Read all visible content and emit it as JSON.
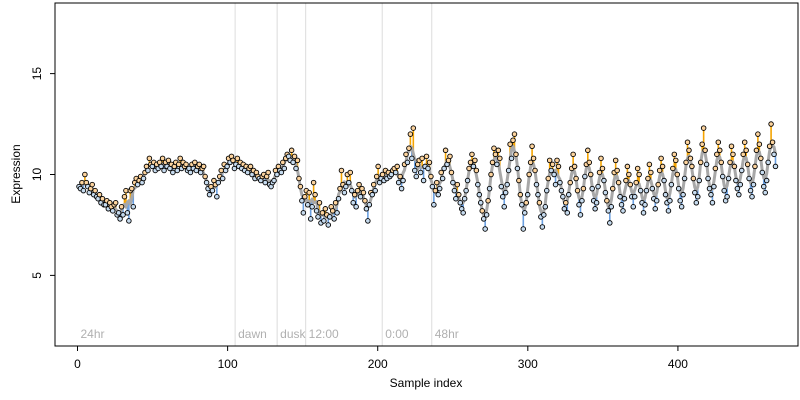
{
  "chart_data": {
    "type": "scatter",
    "title": "",
    "xlabel": "Sample index",
    "ylabel": "Expression",
    "xlim": [
      -15,
      480
    ],
    "ylim": [
      1.5,
      18.5
    ],
    "x_ticks": [
      0,
      100,
      200,
      300,
      400
    ],
    "y_ticks": [
      5,
      10,
      15
    ],
    "grid": false,
    "legend": "none",
    "colors": {
      "points_stroke": "#000000",
      "points_fill_high": "#fdd49e",
      "points_fill_low": "#c6dbef",
      "residual_up": "#f4a300",
      "residual_down": "#6a9fe0",
      "fitted": "#a8a8a8",
      "markers": "#dcdcdc",
      "annotation_text": "#b0b0b0"
    },
    "vertical_markers": [
      {
        "x": 0,
        "label": "24hr"
      },
      {
        "x": 105,
        "label": "dawn"
      },
      {
        "x": 133,
        "label": "dusk"
      },
      {
        "x": 152,
        "label": "12:00"
      },
      {
        "x": 203,
        "label": "0:00"
      },
      {
        "x": 236,
        "label": "48hr"
      }
    ],
    "series": [
      {
        "x_range": [
          1,
          465
        ],
        "values": [
          9.4,
          9.3,
          9.6,
          9.2,
          10.0,
          9.6,
          9.4,
          9.1,
          9.3,
          9.5,
          9.0,
          9.2,
          8.9,
          8.8,
          9.0,
          8.6,
          8.8,
          8.5,
          8.5,
          8.7,
          8.3,
          8.6,
          8.4,
          8.2,
          8.5,
          8.6,
          8.0,
          8.1,
          7.8,
          8.4,
          8.0,
          8.9,
          9.2,
          8.1,
          7.7,
          9.2,
          9.3,
          8.4,
          9.6,
          9.8,
          9.5,
          9.7,
          9.9,
          9.6,
          9.8,
          10.1,
          10.4,
          10.2,
          10.8,
          10.5,
          10.4,
          10.6,
          10.2,
          10.5,
          10.3,
          10.6,
          10.4,
          10.8,
          10.2,
          10.6,
          10.4,
          10.7,
          10.3,
          10.5,
          10.1,
          10.4,
          10.6,
          10.2,
          10.5,
          10.8,
          10.3,
          10.6,
          10.4,
          10.5,
          10.2,
          10.3,
          10.1,
          10.5,
          10.3,
          10.6,
          10.2,
          10.4,
          10.5,
          10.1,
          10.3,
          10.4,
          9.9,
          9.6,
          9.3,
          9.0,
          9.4,
          9.2,
          9.7,
          9.5,
          8.9,
          9.6,
          9.9,
          10.2,
          9.8,
          10.5,
          10.2,
          10.4,
          10.8,
          10.6,
          10.9,
          10.7,
          10.3,
          10.5,
          10.8,
          10.4,
          10.6,
          10.3,
          10.5,
          10.2,
          10.4,
          10.1,
          10.3,
          10.4,
          10.0,
          10.2,
          9.8,
          10.1,
          9.9,
          9.8,
          9.7,
          9.9,
          10.0,
          9.6,
          9.9,
          10.1,
          9.5,
          9.4,
          9.6,
          9.7,
          10.2,
          10.0,
          10.4,
          10.2,
          10.1,
          10.6,
          10.3,
          10.8,
          11.0,
          10.9,
          10.7,
          11.2,
          10.6,
          10.9,
          10.3,
          10.7,
          9.8,
          9.4,
          8.7,
          8.1,
          8.9,
          9.2,
          8.5,
          9.1,
          7.8,
          8.4,
          9.6,
          9.0,
          8.2,
          7.9,
          8.6,
          7.6,
          8.1,
          7.7,
          8.3,
          8.0,
          7.5,
          7.9,
          8.4,
          8.2,
          7.8,
          8.6,
          8.1,
          8.8,
          9.3,
          10.2,
          9.5,
          9.1,
          9.4,
          10.0,
          9.6,
          10.1,
          9.2,
          8.6,
          9.0,
          8.4,
          9.2,
          9.5,
          8.9,
          9.3,
          9.1,
          8.7,
          8.3,
          7.7,
          8.5,
          9.1,
          9.0,
          9.5,
          9.2,
          9.9,
          10.4,
          9.6,
          9.8,
          10.0,
          9.7,
          10.2,
          9.8,
          10.1,
          9.9,
          10.0,
          10.2,
          10.3,
          10.1,
          10.4,
          9.6,
          9.9,
          9.3,
          9.7,
          10.5,
          11.0,
          10.6,
          11.3,
          12.0,
          10.8,
          12.3,
          10.2,
          9.9,
          10.5,
          10.7,
          10.1,
          10.8,
          9.7,
          10.4,
          10.9,
          10.3,
          10.6,
          9.9,
          9.4,
          8.5,
          9.2,
          9.6,
          9.0,
          9.3,
          10.1,
          9.8,
          10.3,
          11.2,
          10.5,
          10.7,
          10.9,
          10.1,
          9.6,
          9.2,
          8.8,
          9.5,
          9.0,
          8.6,
          8.3,
          8.1,
          8.8,
          9.2,
          9.7,
          10.3,
          10.6,
          11.0,
          10.4,
          10.7,
          10.2,
          9.5,
          9.0,
          8.6,
          8.2,
          7.8,
          7.3,
          8.0,
          8.7,
          9.3,
          10.0,
          10.6,
          11.3,
          11.0,
          10.5,
          11.2,
          10.8,
          9.4,
          8.9,
          8.4,
          9.1,
          9.5,
          10.2,
          11.5,
          10.8,
          11.7,
          12.0,
          11.0,
          10.3,
          9.7,
          9.0,
          8.5,
          7.3,
          8.1,
          8.6,
          9.0,
          10.0,
          10.6,
          11.4,
          10.8,
          10.2,
          9.5,
          9.0,
          8.6,
          7.9,
          7.4,
          8.0,
          8.4,
          9.2,
          9.8,
          10.7,
          10.2,
          10.5,
          10.0,
          9.5,
          10.7,
          10.4,
          9.6,
          9.2,
          8.9,
          8.3,
          8.6,
          8.1,
          9.0,
          9.6,
          10.3,
          11.0,
          10.4,
          9.8,
          9.2,
          8.5,
          8.0,
          8.7,
          9.3,
          9.9,
          10.5,
          11.2,
          10.6,
          10.0,
          9.3,
          8.7,
          8.3,
          8.6,
          9.4,
          10.1,
          10.8,
          10.3,
          9.7,
          9.1,
          8.7,
          8.2,
          7.6,
          8.4,
          9.3,
          10.1,
          10.7,
          10.2,
          9.6,
          8.9,
          8.5,
          8.2,
          8.8,
          9.7,
          10.4,
          10.0,
          9.5,
          8.9,
          8.4,
          8.9,
          9.6,
          10.3,
          10.0,
          9.2,
          8.6,
          8.1,
          8.5,
          9.2,
          9.8,
          10.5,
          10.1,
          9.3,
          8.8,
          8.3,
          8.7,
          9.5,
          10.2,
          10.8,
          10.4,
          9.7,
          9.0,
          8.6,
          8.2,
          8.7,
          9.5,
          10.3,
          11.0,
          10.7,
          10.0,
          9.3,
          8.7,
          8.4,
          9.0,
          9.8,
          10.6,
          11.6,
          11.2,
          10.8,
          10.4,
          9.8,
          9.1,
          8.6,
          8.9,
          9.7,
          10.6,
          11.5,
          12.3,
          11.2,
          10.5,
          9.8,
          9.3,
          9.0,
          8.6,
          9.4,
          10.3,
          11.0,
          11.6,
          11.2,
          10.6,
          9.9,
          9.2,
          8.7,
          8.9,
          9.8,
          10.6,
          11.4,
          11.0,
          10.4,
          9.7,
          9.3,
          9.0,
          9.5,
          10.2,
          11.0,
          11.6,
          11.2,
          10.5,
          9.8,
          9.2,
          8.9,
          9.5,
          10.4,
          11.2,
          12.0,
          11.5,
          10.8,
          10.1,
          9.4,
          9.1,
          9.7,
          10.6,
          11.4,
          12.5,
          11.6,
          11.0,
          10.4
        ]
      }
    ]
  }
}
